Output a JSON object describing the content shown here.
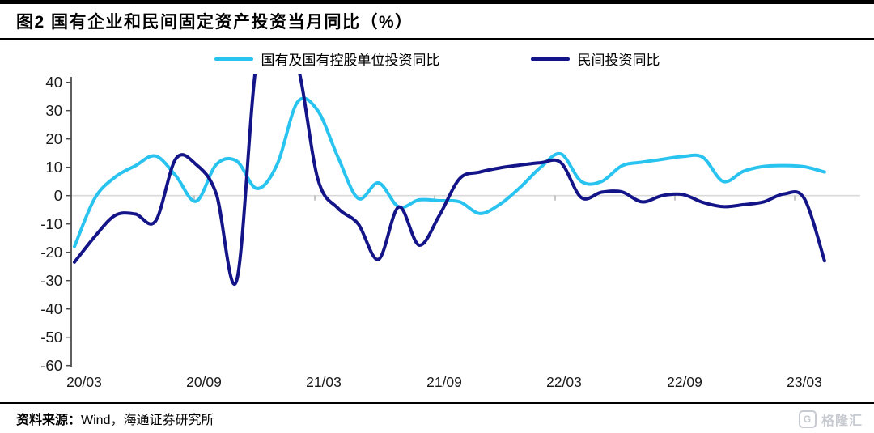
{
  "header": {
    "title": "图2  国有企业和民间固定资产投资当月同比（%）"
  },
  "legend": {
    "items": [
      {
        "label": "国有及国有控股单位投资同比",
        "color": "#29C3F0"
      },
      {
        "label": "民间投资同比",
        "color": "#141489"
      }
    ]
  },
  "footer": {
    "source_label": "资料来源：",
    "source_text": "Wind，海通证券研究所",
    "watermark_initial": "G",
    "watermark": "格隆汇"
  },
  "chart_data": {
    "type": "line",
    "title": "国有企业和民间固定资产投资当月同比（%）",
    "xlabel": "",
    "ylabel": "%",
    "ylim": [
      -60,
      40
    ],
    "y_tick_step": 10,
    "grid": false,
    "zero_line": true,
    "legend_position": "top",
    "x_tick_labels": [
      "20/03",
      "20/09",
      "21/03",
      "21/09",
      "22/03",
      "22/09",
      "23/03"
    ],
    "months": [
      "20/03",
      "20/04",
      "20/05",
      "20/06",
      "20/07",
      "20/08",
      "20/09",
      "20/10",
      "20/11",
      "20/12",
      "21/01",
      "21/02",
      "21/03",
      "21/04",
      "21/05",
      "21/06",
      "21/07",
      "21/08",
      "21/09",
      "21/10",
      "21/11",
      "21/12",
      "22/01",
      "22/02",
      "22/03",
      "22/04",
      "22/05",
      "22/06",
      "22/07",
      "22/08",
      "22/09",
      "22/10",
      "22/11",
      "22/12",
      "23/01",
      "23/02",
      "23/03",
      "23/04"
    ],
    "series": [
      {
        "name": "国有及国有控股单位投资同比",
        "color": "#29C3F0",
        "values": [
          -18,
          -1,
          6.5,
          10.5,
          14,
          7,
          -2,
          11,
          12.2,
          2.5,
          11,
          33,
          30,
          13.5,
          -1,
          4.5,
          -4,
          -1.5,
          -1.8,
          -2.2,
          -6.3,
          -3,
          3,
          10,
          14.7,
          5,
          5,
          10.5,
          11.8,
          12.8,
          13.8,
          13.5,
          5,
          8.6,
          10.3,
          10.6,
          10.2,
          8.3
        ]
      },
      {
        "name": "民间投资同比",
        "color": "#141489",
        "values": [
          -23.5,
          -14.5,
          -7,
          -6.5,
          -9,
          13,
          11,
          0.5,
          -30,
          48,
          52,
          46,
          6,
          -4.5,
          -10,
          -22.5,
          -4,
          -17.5,
          -7,
          6,
          8.3,
          9.8,
          10.8,
          11.6,
          11.6,
          -0.7,
          1.2,
          1.3,
          -2.2,
          0,
          0.4,
          -2.4,
          -3.9,
          -3.2,
          -2.2,
          0.6,
          -1,
          -23
        ]
      }
    ]
  }
}
